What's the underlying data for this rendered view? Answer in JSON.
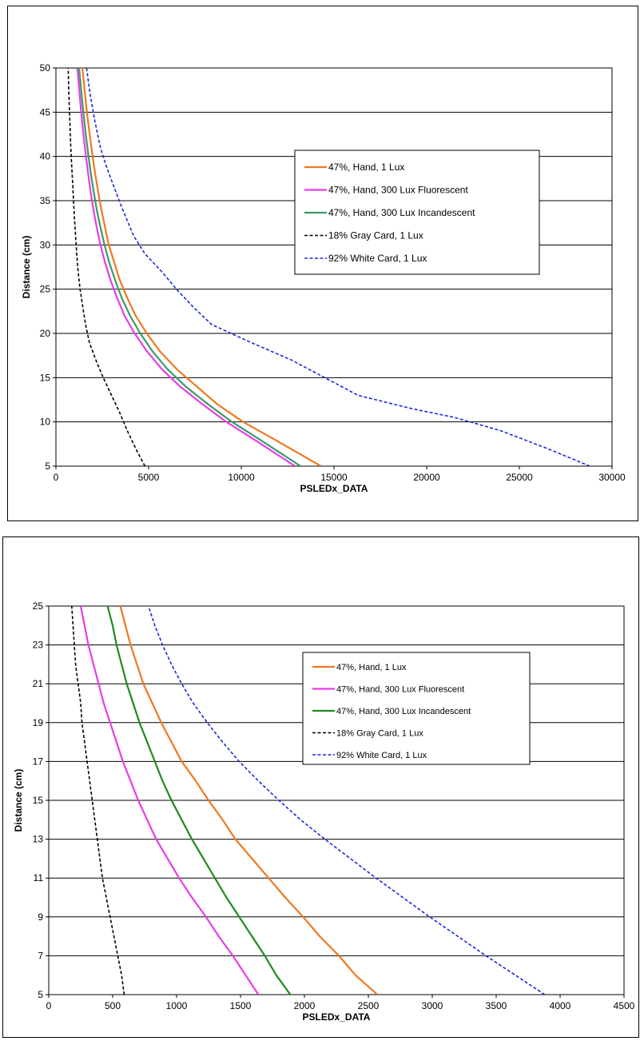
{
  "chart_data": [
    {
      "type": "line",
      "xlabel": "PSLEDx_DATA",
      "ylabel": "Distance (cm)",
      "xlim": [
        0,
        30000
      ],
      "ylim": [
        5,
        50
      ],
      "xticks": [
        0,
        5000,
        10000,
        15000,
        20000,
        25000,
        30000
      ],
      "yticks": [
        5,
        10,
        15,
        20,
        25,
        30,
        35,
        40,
        45,
        50
      ],
      "grid": "horizontal",
      "legend_position": "center-right",
      "series": [
        {
          "name": "47%, Hand, 1 Lux",
          "color": "#F07820",
          "dash": "solid",
          "x": [
            14300,
            11800,
            10100,
            8700,
            7600,
            6500,
            5600,
            4900,
            4300,
            3850,
            3450,
            3150,
            2850,
            2650,
            2450,
            2280,
            2120,
            1980,
            1850,
            1730,
            1620,
            1520,
            1430,
            1340,
            1260,
            1180
          ],
          "y": [
            5,
            8,
            10,
            12,
            14,
            16,
            18,
            20,
            22,
            24,
            26,
            28,
            30,
            32,
            34,
            36,
            38,
            40,
            42,
            44,
            46,
            48,
            50,
            50,
            50,
            50
          ]
        },
        {
          "name": "47%, Hand, 300 Lux Fluorescent",
          "color": "#E83CE8",
          "dash": "solid",
          "x": [
            12900,
            10700,
            9200,
            7900,
            6700,
            5700,
            4900,
            4250,
            3700,
            3300,
            2950,
            2650,
            2400,
            2200,
            2020,
            1870,
            1740,
            1620,
            1510,
            1410,
            1320,
            1240,
            1150,
            1070,
            1000,
            930
          ],
          "y": [
            5,
            8,
            10,
            12,
            14,
            16,
            18,
            20,
            22,
            24,
            26,
            28,
            30,
            32,
            34,
            36,
            38,
            40,
            42,
            44,
            46,
            48,
            50,
            50,
            50,
            50
          ]
        },
        {
          "name": "47%, Hand, 300 Lux Incandescent",
          "color": "#3A9A6A",
          "dash": "solid",
          "x": [
            13200,
            11000,
            9500,
            8200,
            7000,
            6000,
            5200,
            4550,
            4000,
            3550,
            3200,
            2880,
            2620,
            2400,
            2200,
            2040,
            1890,
            1760,
            1640,
            1530,
            1430,
            1340,
            1250,
            1170,
            1090,
            1020
          ],
          "y": [
            5,
            8,
            10,
            12,
            14,
            16,
            18,
            20,
            22,
            24,
            26,
            28,
            30,
            32,
            34,
            36,
            38,
            40,
            42,
            44,
            46,
            48,
            50,
            50,
            50,
            50
          ]
        },
        {
          "name": "18% Gray Card, 1 Lux",
          "color": "#000000",
          "dash": "dashed",
          "x": [
            4800,
            4300,
            3850,
            3450,
            3000,
            2550,
            2150,
            1800,
            1600,
            1450,
            1300,
            1200,
            1120,
            1060,
            1000,
            950,
            900,
            850,
            800,
            750,
            700,
            660
          ],
          "y": [
            5,
            7,
            9,
            11,
            13,
            15,
            17,
            19,
            21,
            23,
            25,
            27,
            29,
            31,
            33,
            35,
            37,
            39,
            41,
            44,
            47,
            50
          ]
        },
        {
          "name": "92% White Card, 1 Lux",
          "color": "#1A2AD8",
          "dash": "dashed",
          "x": [
            28800,
            26500,
            24000,
            21500,
            19200,
            16300,
            14500,
            12700,
            10500,
            8400,
            7400,
            6500,
            5700,
            4800,
            4200,
            3600,
            3050,
            2700,
            2400,
            2100,
            1850,
            1650
          ],
          "y": [
            5,
            7,
            9,
            10.5,
            11.5,
            13,
            15,
            17,
            19,
            21,
            23,
            25,
            27,
            29,
            31,
            34,
            37,
            39,
            41,
            44,
            47,
            50
          ]
        }
      ]
    },
    {
      "type": "line",
      "xlabel": "PSLEDx_DATA",
      "ylabel": "Distance (cm)",
      "xlim": [
        0,
        4500
      ],
      "ylim": [
        5,
        25
      ],
      "xticks": [
        0,
        500,
        1000,
        1500,
        2000,
        2500,
        3000,
        3500,
        4000,
        4500
      ],
      "yticks": [
        5,
        7,
        9,
        11,
        13,
        15,
        17,
        19,
        21,
        23,
        25
      ],
      "grid": "horizontal",
      "legend_position": "center-right",
      "series": [
        {
          "name": "47%, Hand, 1 Lux",
          "color": "#F07820",
          "dash": "solid",
          "x": [
            2570,
            2400,
            2270,
            2120,
            1990,
            1850,
            1720,
            1590,
            1460,
            1360,
            1250,
            1150,
            1040,
            960,
            880,
            810,
            740,
            690,
            640,
            600,
            560
          ],
          "y": [
            5,
            6,
            7,
            8,
            9,
            10,
            11,
            12,
            13,
            14,
            15,
            16,
            17,
            18,
            19,
            20,
            21,
            22,
            23,
            24,
            25
          ]
        },
        {
          "name": "47%, Hand, 300 Lux Fluorescent",
          "color": "#E83CE8",
          "dash": "solid",
          "x": [
            1640,
            1540,
            1440,
            1330,
            1230,
            1120,
            1020,
            930,
            840,
            770,
            700,
            640,
            580,
            530,
            480,
            430,
            390,
            350,
            310,
            280,
            250
          ],
          "y": [
            5,
            6,
            7,
            8,
            9,
            10,
            11,
            12,
            13,
            14,
            15,
            16,
            17,
            18,
            19,
            20,
            21,
            22,
            23,
            24,
            25
          ]
        },
        {
          "name": "47%, Hand, 300 Lux Incandescent",
          "color": "#1F8A1F",
          "dash": "solid",
          "x": [
            1890,
            1780,
            1690,
            1590,
            1490,
            1390,
            1300,
            1210,
            1120,
            1040,
            960,
            890,
            830,
            770,
            710,
            660,
            610,
            570,
            530,
            500,
            460
          ],
          "y": [
            5,
            6,
            7,
            8,
            9,
            10,
            11,
            12,
            13,
            14,
            15,
            16,
            17,
            18,
            19,
            20,
            21,
            22,
            23,
            24,
            25
          ]
        },
        {
          "name": "18% Gray Card, 1 Lux",
          "color": "#000000",
          "dash": "dashed",
          "x": [
            590,
            570,
            540,
            510,
            480,
            450,
            420,
            400,
            380,
            360,
            340,
            320,
            300,
            280,
            260,
            250,
            230,
            210,
            200,
            190,
            180
          ],
          "y": [
            5,
            6,
            7,
            8,
            9,
            10,
            11,
            12,
            13,
            14,
            15,
            16,
            17,
            18,
            19,
            20,
            21,
            22,
            23,
            24,
            25
          ]
        },
        {
          "name": "92% White Card, 1 Lux",
          "color": "#1A2AD8",
          "dash": "dashed",
          "x": [
            3880,
            3650,
            3420,
            3200,
            2980,
            2770,
            2560,
            2360,
            2160,
            1970,
            1800,
            1640,
            1490,
            1360,
            1240,
            1130,
            1040,
            960,
            890,
            830,
            780
          ],
          "y": [
            5,
            6,
            7,
            8,
            9,
            10,
            11,
            12,
            13,
            14,
            15,
            16,
            17,
            18,
            19,
            20,
            21,
            22,
            23,
            24,
            25
          ]
        }
      ]
    }
  ]
}
